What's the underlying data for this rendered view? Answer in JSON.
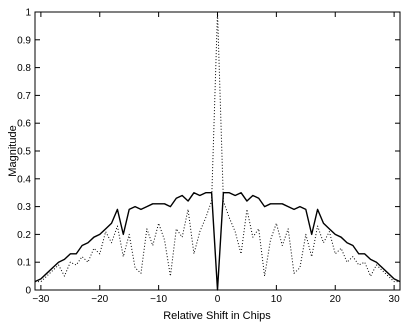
{
  "chart_data": {
    "type": "line",
    "title": "",
    "xlabel": "Relative Shift in Chips",
    "ylabel": "Magnitude",
    "xlim": [
      -31,
      31
    ],
    "ylim": [
      0,
      1
    ],
    "xticks": [
      -30,
      -20,
      -10,
      0,
      10,
      20,
      30
    ],
    "yticks": [
      0,
      0.1,
      0.2,
      0.3,
      0.4,
      0.5,
      0.6,
      0.7,
      0.8,
      0.9,
      1
    ],
    "grid": false,
    "legend": "none",
    "series": [
      {
        "style": "solid",
        "color": "#000000",
        "x": [
          -31,
          -30,
          -29,
          -28,
          -27,
          -26,
          -25,
          -24,
          -23,
          -22,
          -21,
          -20,
          -19,
          -18,
          -17,
          -16,
          -15,
          -14,
          -13,
          -12,
          -11,
          -10,
          -9,
          -8,
          -7,
          -6,
          -5,
          -4,
          -3,
          -2,
          -1,
          0,
          1,
          2,
          3,
          4,
          5,
          6,
          7,
          8,
          9,
          10,
          11,
          12,
          13,
          14,
          15,
          16,
          17,
          18,
          19,
          20,
          21,
          22,
          23,
          24,
          25,
          26,
          27,
          28,
          29,
          30,
          31
        ],
        "y": [
          0.03,
          0.04,
          0.06,
          0.08,
          0.1,
          0.11,
          0.13,
          0.13,
          0.16,
          0.17,
          0.19,
          0.2,
          0.22,
          0.24,
          0.29,
          0.2,
          0.29,
          0.3,
          0.29,
          0.3,
          0.31,
          0.31,
          0.31,
          0.3,
          0.33,
          0.34,
          0.32,
          0.35,
          0.34,
          0.35,
          0.35,
          0.0,
          0.35,
          0.35,
          0.34,
          0.35,
          0.32,
          0.34,
          0.33,
          0.3,
          0.31,
          0.31,
          0.31,
          0.3,
          0.29,
          0.3,
          0.29,
          0.2,
          0.29,
          0.24,
          0.22,
          0.2,
          0.19,
          0.17,
          0.16,
          0.13,
          0.13,
          0.11,
          0.1,
          0.08,
          0.06,
          0.04,
          0.03
        ]
      },
      {
        "style": "dotted",
        "color": "#000000",
        "x": [
          -31,
          -30,
          -29,
          -28,
          -27,
          -26,
          -25,
          -24,
          -23,
          -22,
          -21,
          -20,
          -19,
          -18,
          -17,
          -16,
          -15,
          -14,
          -13,
          -12,
          -11,
          -10,
          -9,
          -8,
          -7,
          -6,
          -5,
          -4,
          -3,
          -2,
          -1,
          0,
          1,
          2,
          3,
          4,
          5,
          6,
          7,
          8,
          9,
          10,
          11,
          12,
          13,
          14,
          15,
          16,
          17,
          18,
          19,
          20,
          21,
          22,
          23,
          24,
          25,
          26,
          27,
          28,
          29,
          30,
          31
        ],
        "y": [
          0.03,
          0.03,
          0.05,
          0.07,
          0.09,
          0.05,
          0.1,
          0.09,
          0.12,
          0.1,
          0.15,
          0.13,
          0.21,
          0.17,
          0.23,
          0.12,
          0.2,
          0.08,
          0.06,
          0.22,
          0.16,
          0.24,
          0.18,
          0.05,
          0.22,
          0.19,
          0.29,
          0.13,
          0.21,
          0.26,
          0.32,
          1.0,
          0.32,
          0.26,
          0.21,
          0.13,
          0.29,
          0.19,
          0.22,
          0.05,
          0.18,
          0.24,
          0.16,
          0.22,
          0.06,
          0.08,
          0.2,
          0.12,
          0.23,
          0.17,
          0.21,
          0.13,
          0.15,
          0.1,
          0.12,
          0.09,
          0.1,
          0.05,
          0.09,
          0.07,
          0.05,
          0.03,
          0.03
        ]
      }
    ]
  }
}
